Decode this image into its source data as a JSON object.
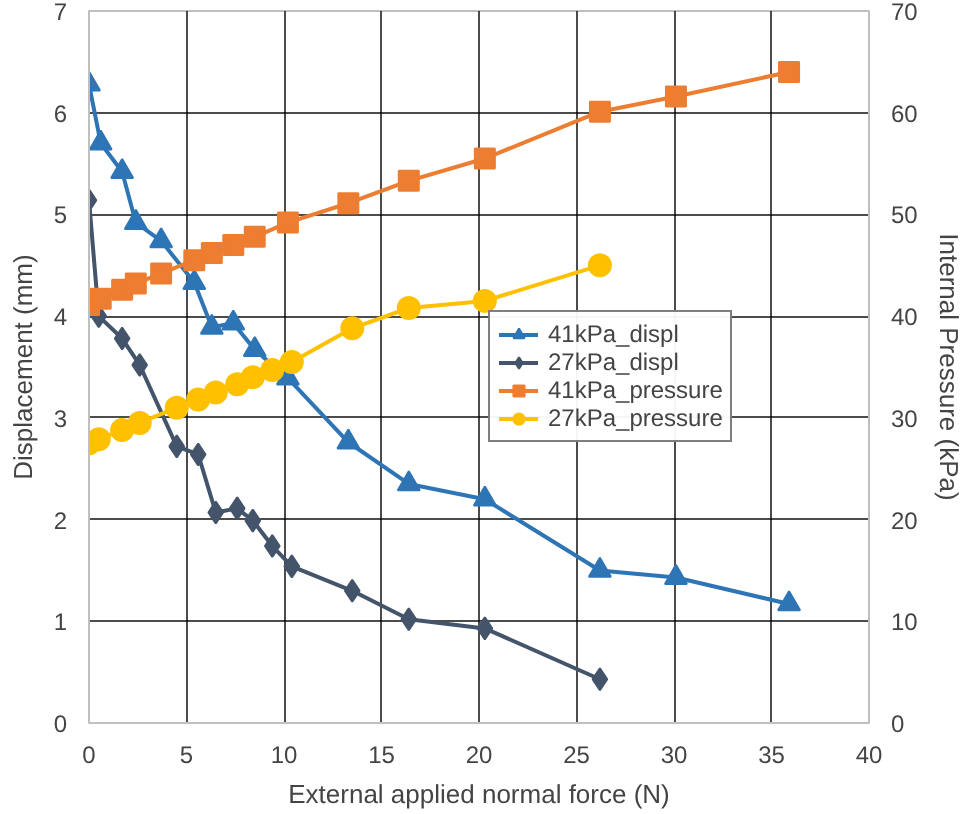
{
  "chart_data": {
    "type": "line",
    "xlabel": "External applied normal force (N)",
    "ylabel": "Displacement (mm)",
    "y2label": "Internal Pressure (kPa)",
    "xlim": [
      0,
      40
    ],
    "xticks": [
      0,
      5,
      10,
      15,
      20,
      25,
      30,
      35,
      40
    ],
    "ylim": [
      0,
      7
    ],
    "yticks": [
      0,
      1,
      2,
      3,
      4,
      5,
      6,
      7
    ],
    "y2lim": [
      0,
      70
    ],
    "y2ticks": [
      0,
      10,
      20,
      30,
      40,
      50,
      60,
      70
    ],
    "grid": true,
    "legend": "right",
    "line_style": "solid",
    "series": [
      {
        "name": "41kPa_displ",
        "color": "#2e75b6",
        "marker": "triangle",
        "x": [
          0,
          0.6,
          1.7,
          2.4,
          3.7,
          5.4,
          6.3,
          7.4,
          8.5,
          10.2,
          13.3,
          16.4,
          20.3,
          26.2,
          30.1,
          35.9
        ],
        "values": [
          6.28,
          5.7,
          5.42,
          4.92,
          4.74,
          4.33,
          3.89,
          3.93,
          3.67,
          3.39,
          2.76,
          2.35,
          2.2,
          1.5,
          1.43,
          1.17
        ]
      },
      {
        "name": "27kPa_displ",
        "color": "#44546a",
        "marker": "diamond",
        "x": [
          0,
          0.5,
          1.7,
          2.6,
          4.5,
          5.6,
          6.5,
          7.6,
          8.4,
          9.4,
          10.4,
          13.5,
          16.4,
          20.3,
          26.2
        ],
        "values": [
          5.14,
          4.0,
          3.78,
          3.52,
          2.72,
          2.64,
          2.07,
          2.11,
          1.99,
          1.74,
          1.54,
          1.3,
          1.02,
          0.93,
          0.43
        ]
      },
      {
        "name": "41kPa_pressure",
        "color": "#ed7d31",
        "marker": "square",
        "axis": "y2",
        "x": [
          0,
          0.6,
          1.7,
          2.4,
          3.7,
          5.4,
          6.3,
          7.4,
          8.5,
          10.2,
          13.3,
          16.4,
          20.3,
          26.2,
          30.1,
          35.9
        ],
        "values": [
          41.1,
          41.7,
          42.6,
          43.2,
          44.2,
          45.5,
          46.2,
          47,
          47.8,
          49.2,
          51.1,
          53.3,
          55.5,
          60.1,
          61.6,
          64
        ]
      },
      {
        "name": "27kPa_pressure",
        "color": "#ffc000",
        "marker": "circle",
        "axis": "y2",
        "x": [
          0,
          0.5,
          1.7,
          2.6,
          4.5,
          5.6,
          6.5,
          7.6,
          8.4,
          9.4,
          10.4,
          13.5,
          16.4,
          20.3,
          26.2
        ],
        "values": [
          27.5,
          27.9,
          28.8,
          29.5,
          31,
          31.8,
          32.5,
          33.3,
          34,
          34.7,
          35.5,
          38.8,
          40.8,
          41.5,
          45
        ]
      }
    ]
  }
}
